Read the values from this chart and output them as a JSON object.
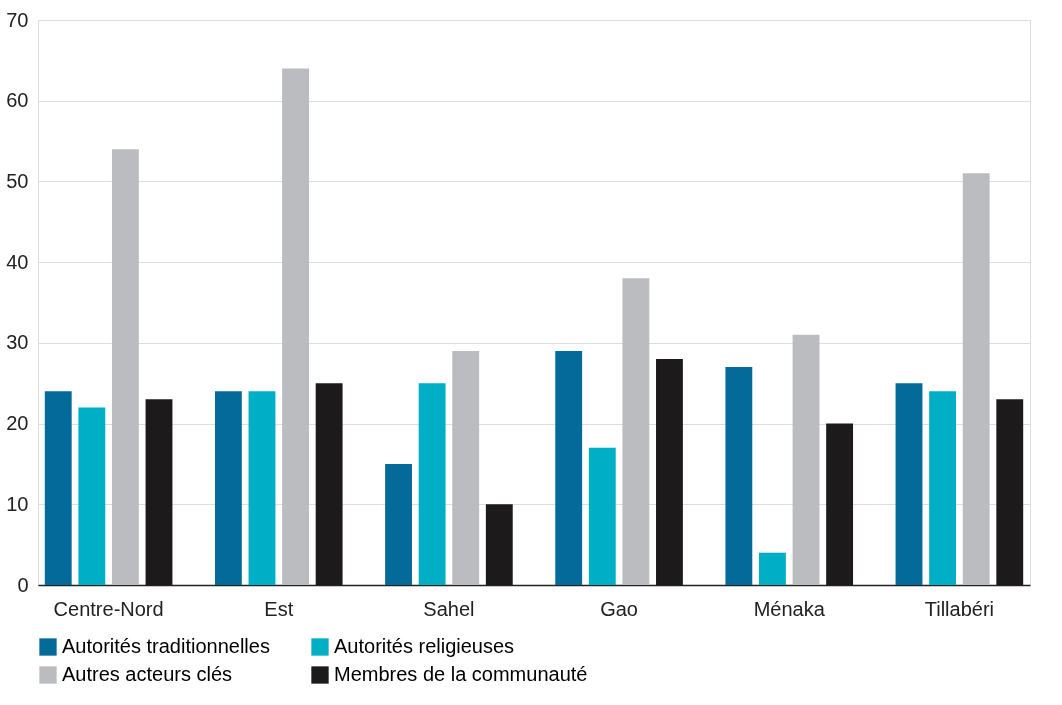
{
  "chart_data": {
    "type": "bar",
    "categories": [
      "Centre-Nord",
      "Est",
      "Sahel",
      "Gao",
      "Ménaka",
      "Tillabéri"
    ],
    "series": [
      {
        "name": "Autorités traditionnelles",
        "color": "#046a9a",
        "values": [
          24,
          24,
          15,
          29,
          27,
          25
        ]
      },
      {
        "name": "Autorités religieuses",
        "color": "#00afc6",
        "values": [
          22,
          24,
          25,
          17,
          4,
          24
        ]
      },
      {
        "name": "Autres acteurs clés",
        "color": "#bbbcc0",
        "values": [
          54,
          64,
          29,
          38,
          31,
          51
        ]
      },
      {
        "name": "Membres de la communauté",
        "color": "#1c1a1b",
        "values": [
          23,
          25,
          10,
          28,
          20,
          23
        ]
      }
    ],
    "ylim": [
      0,
      70
    ],
    "yticks": [
      0,
      10,
      20,
      30,
      40,
      50,
      60,
      70
    ],
    "grid": "y",
    "legend": "bottom"
  }
}
